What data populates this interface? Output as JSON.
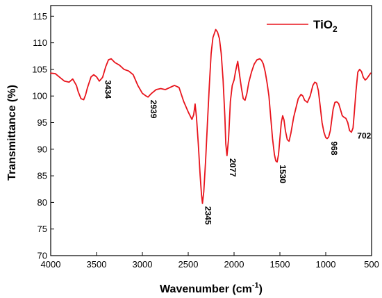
{
  "chart_data": {
    "type": "line",
    "xlabel": "Wavenumber (cm",
    "xlabel_sup": "-1",
    "xlabel_tail": ")",
    "ylabel": "Transmittance (%)",
    "xlim": [
      4000,
      500
    ],
    "ylim": [
      70,
      117
    ],
    "x_ticks": [
      4000,
      3500,
      3000,
      2500,
      2000,
      1500,
      1000,
      500
    ],
    "y_ticks": [
      70,
      75,
      80,
      85,
      90,
      95,
      100,
      105,
      110,
      115
    ],
    "grid": false,
    "legend_position": "top-right",
    "series": [
      {
        "name": "TiO",
        "name_sub": "2",
        "color": "#e8141c",
        "x": [
          4000,
          3950,
          3900,
          3850,
          3800,
          3760,
          3720,
          3700,
          3670,
          3640,
          3620,
          3600,
          3560,
          3530,
          3500,
          3470,
          3434,
          3400,
          3370,
          3340,
          3300,
          3250,
          3200,
          3150,
          3100,
          3050,
          3000,
          2960,
          2939,
          2900,
          2850,
          2800,
          2750,
          2700,
          2650,
          2600,
          2550,
          2500,
          2460,
          2440,
          2425,
          2410,
          2390,
          2370,
          2355,
          2345,
          2330,
          2310,
          2290,
          2270,
          2250,
          2230,
          2200,
          2180,
          2160,
          2140,
          2120,
          2100,
          2090,
          2077,
          2060,
          2040,
          2020,
          2000,
          1985,
          1970,
          1960,
          1940,
          1920,
          1900,
          1880,
          1860,
          1840,
          1810,
          1780,
          1750,
          1720,
          1700,
          1680,
          1660,
          1640,
          1620,
          1600,
          1580,
          1560,
          1545,
          1530,
          1515,
          1500,
          1485,
          1470,
          1455,
          1440,
          1420,
          1400,
          1380,
          1350,
          1300,
          1270,
          1250,
          1230,
          1200,
          1170,
          1140,
          1120,
          1100,
          1080,
          1060,
          1040,
          1020,
          1000,
          985,
          968,
          950,
          935,
          920,
          900,
          880,
          860,
          840,
          820,
          800,
          780,
          760,
          740,
          720,
          702,
          690,
          670,
          650,
          630,
          610,
          590,
          570,
          550,
          530,
          510
        ],
        "y": [
          104.3,
          104.2,
          103.5,
          102.8,
          102.6,
          103.2,
          102.0,
          100.8,
          99.5,
          99.3,
          100.2,
          101.5,
          103.6,
          104.0,
          103.6,
          102.8,
          103.5,
          105.5,
          106.8,
          107.0,
          106.3,
          105.8,
          105.0,
          104.7,
          104.0,
          102.0,
          100.5,
          100.0,
          99.8,
          100.5,
          101.2,
          101.4,
          101.2,
          101.6,
          102.0,
          101.6,
          99.0,
          97.0,
          95.6,
          96.5,
          98.5,
          96.0,
          91.0,
          85.0,
          81.5,
          79.8,
          82.0,
          88.0,
          95.0,
          102.0,
          108.0,
          111.0,
          112.5,
          112.0,
          110.8,
          108.0,
          103.0,
          96.0,
          91.0,
          88.8,
          92.0,
          99.0,
          102.0,
          103.0,
          104.5,
          105.8,
          106.5,
          104.0,
          101.5,
          99.5,
          99.2,
          100.5,
          102.5,
          104.5,
          106.0,
          106.8,
          107.0,
          106.7,
          106.0,
          104.5,
          102.5,
          100.0,
          96.0,
          92.0,
          89.0,
          87.8,
          87.6,
          89.0,
          92.0,
          95.0,
          96.3,
          95.5,
          93.5,
          91.8,
          91.5,
          93.0,
          96.0,
          99.5,
          100.3,
          100.0,
          99.2,
          98.8,
          100.0,
          102.0,
          102.6,
          102.4,
          101.0,
          98.0,
          95.0,
          93.2,
          92.2,
          92.0,
          92.3,
          93.5,
          95.5,
          97.5,
          98.8,
          98.9,
          98.6,
          97.5,
          96.3,
          96.0,
          95.8,
          95.0,
          93.5,
          93.2,
          94.0,
          96.5,
          101.0,
          104.5,
          105.0,
          104.6,
          103.5,
          103.0,
          103.3,
          103.8,
          104.3
        ]
      }
    ],
    "annotations": [
      {
        "text": "3434",
        "x": 3434,
        "y": 103.5
      },
      {
        "text": "2939",
        "x": 2939,
        "y": 99.8
      },
      {
        "text": "2345",
        "x": 2345,
        "y": 79.8
      },
      {
        "text": "2077",
        "x": 2077,
        "y": 88.8
      },
      {
        "text": "1530",
        "x": 1530,
        "y": 87.6
      },
      {
        "text": "968",
        "x": 968,
        "y": 92.0
      },
      {
        "text": "702",
        "x": 702,
        "y": 93.2
      }
    ]
  }
}
